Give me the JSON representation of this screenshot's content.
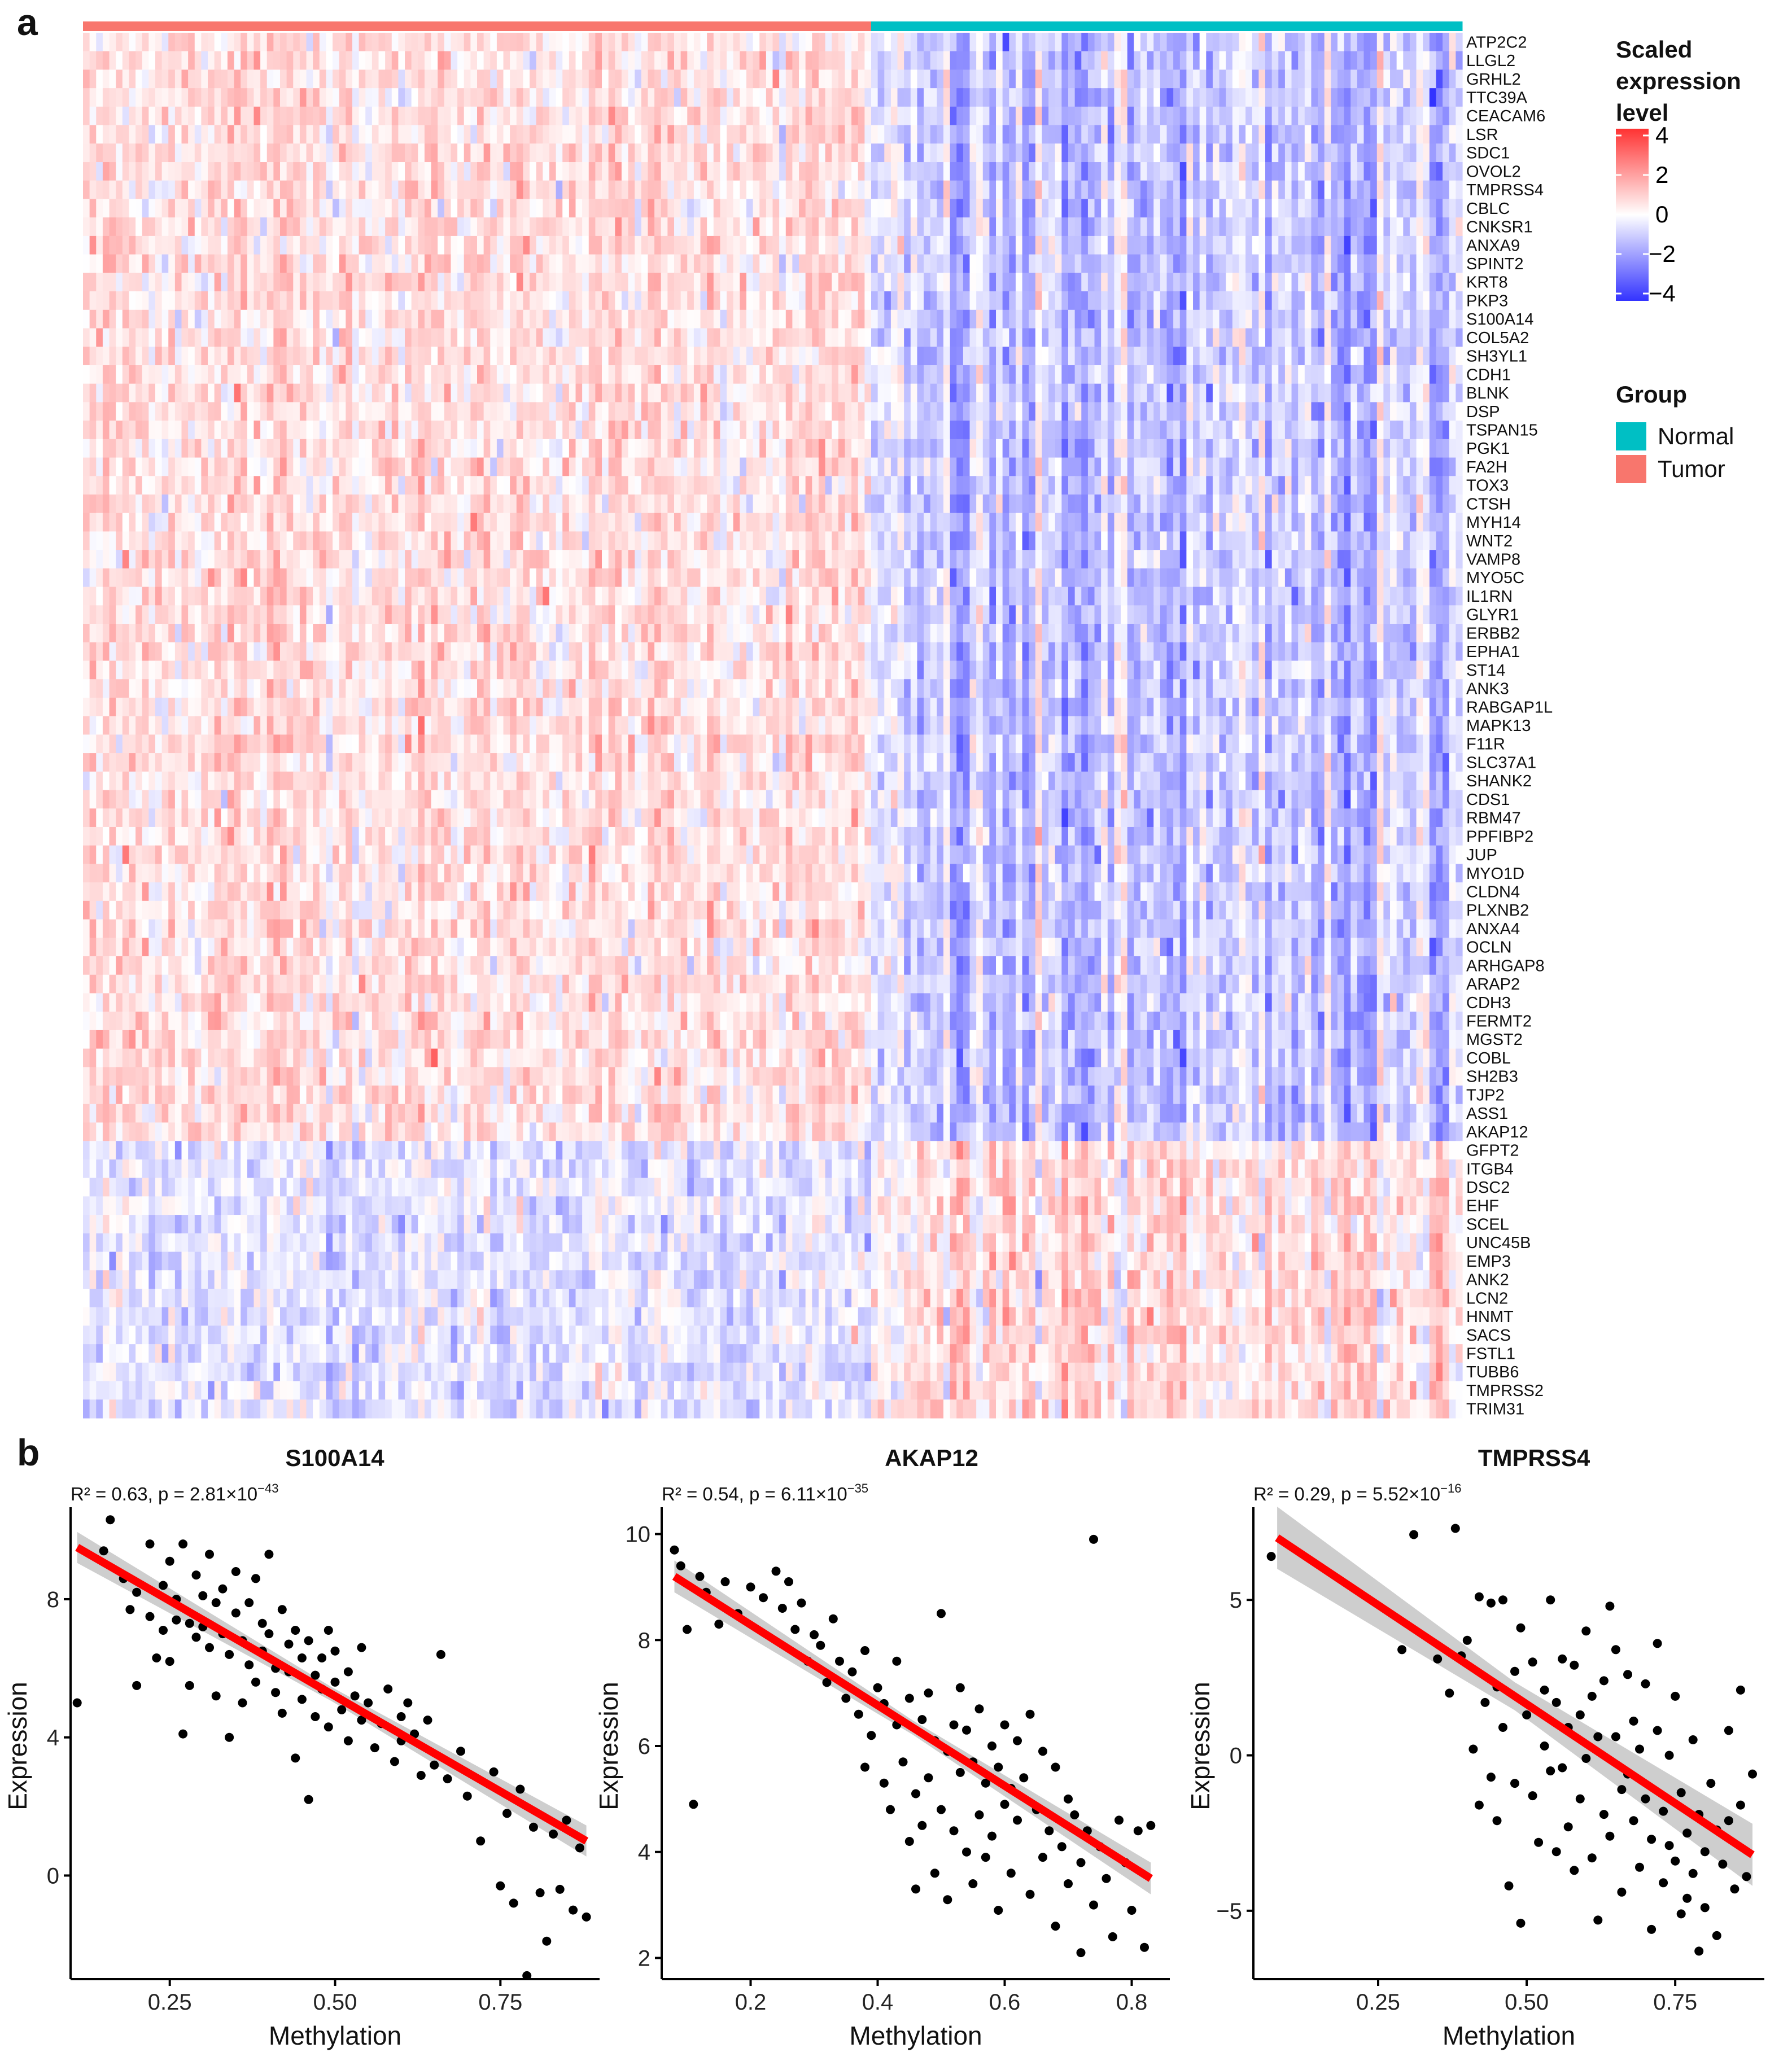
{
  "panel_a_label": "a",
  "panel_b_label": "b",
  "colors": {
    "tumor": "#F8766D",
    "normal": "#00BFC4",
    "low": "#3333FF",
    "mid": "#FFFFFF",
    "high": "#FF3333",
    "fit_line": "#FF0000",
    "ribbon": "#BEBEBE"
  },
  "legend": {
    "scale_title_lines": [
      "Scaled",
      "expression",
      "level"
    ],
    "scale_ticks": [
      "4",
      "2",
      "0",
      "−2",
      "−4"
    ],
    "group_title": "Group",
    "groups": [
      {
        "label": "Normal",
        "color": "#00BFC4"
      },
      {
        "label": "Tumor",
        "color": "#F8766D"
      }
    ]
  },
  "chart_data": [
    {
      "type": "heatmap",
      "title": "",
      "column_groups": [
        {
          "label": "Tumor",
          "count": 120
        },
        {
          "label": "Normal",
          "count": 90
        }
      ],
      "rows": [
        "ATP2C2",
        "LLGL2",
        "GRHL2",
        "TTC39A",
        "CEACAM6",
        "LSR",
        "SDC1",
        "OVOL2",
        "TMPRSS4",
        "CBLC",
        "CNKSR1",
        "ANXA9",
        "SPINT2",
        "KRT8",
        "PKP3",
        "S100A14",
        "COL5A2",
        "SH3YL1",
        "CDH1",
        "BLNK",
        "DSP",
        "TSPAN15",
        "PGK1",
        "FA2H",
        "TOX3",
        "CTSH",
        "MYH14",
        "WNT2",
        "VAMP8",
        "MYO5C",
        "IL1RN",
        "GLYR1",
        "ERBB2",
        "EPHA1",
        "ST14",
        "ANK3",
        "RABGAP1L",
        "MAPK13",
        "F11R",
        "SLC37A1",
        "SHANK2",
        "CDS1",
        "RBM47",
        "PPFIBP2",
        "JUP",
        "MYO1D",
        "CLDN4",
        "PLXNB2",
        "ANXA4",
        "OCLN",
        "ARHGAP8",
        "ARAP2",
        "CDH3",
        "FERMT2",
        "MGST2",
        "COBL",
        "SH2B3",
        "TJP2",
        "ASS1",
        "AKAP12",
        "GFPT2",
        "ITGB4",
        "DSC2",
        "EHF",
        "SCEL",
        "UNC45B",
        "EMP3",
        "ANK2",
        "LCN2",
        "HNMT",
        "SACS",
        "FSTL1",
        "TUBB6",
        "TMPRSS2",
        "TRIM31"
      ],
      "upper_block_rows": 60,
      "tumor_mean_upper": 0.6,
      "normal_mean_upper": -1.2,
      "tumor_mean_lower": -0.5,
      "normal_mean_lower": 0.7,
      "scale_range": [
        -4,
        4
      ]
    },
    {
      "type": "scatter",
      "title": "S100A14",
      "stat_prefix": "R² = 0.63, p = 2.81×10",
      "stat_exp": "−43",
      "xlabel": "Methylation",
      "ylabel": "Expression",
      "xlim": [
        0.1,
        0.9
      ],
      "ylim": [
        -3,
        10.5
      ],
      "xticks": [
        0.25,
        0.5,
        0.75
      ],
      "xtick_labels": [
        "0.25",
        "0.50",
        "0.75"
      ],
      "yticks": [
        0,
        4,
        8
      ],
      "ytick_labels": [
        "0",
        "4",
        "8"
      ],
      "fit": {
        "x0": 0.11,
        "y0": 9.5,
        "x1": 0.88,
        "y1": 1.0,
        "band": 0.45
      },
      "points": [
        [
          0.11,
          5.0
        ],
        [
          0.15,
          9.4
        ],
        [
          0.16,
          10.3
        ],
        [
          0.18,
          8.6
        ],
        [
          0.19,
          7.7
        ],
        [
          0.2,
          8.2
        ],
        [
          0.2,
          5.5
        ],
        [
          0.22,
          9.6
        ],
        [
          0.22,
          7.5
        ],
        [
          0.23,
          6.3
        ],
        [
          0.24,
          8.4
        ],
        [
          0.24,
          7.1
        ],
        [
          0.25,
          9.1
        ],
        [
          0.25,
          6.2
        ],
        [
          0.26,
          7.4
        ],
        [
          0.26,
          8.0
        ],
        [
          0.27,
          9.6
        ],
        [
          0.27,
          4.1
        ],
        [
          0.28,
          7.3
        ],
        [
          0.28,
          5.5
        ],
        [
          0.29,
          8.7
        ],
        [
          0.29,
          6.9
        ],
        [
          0.3,
          8.1
        ],
        [
          0.3,
          7.2
        ],
        [
          0.31,
          9.3
        ],
        [
          0.31,
          6.6
        ],
        [
          0.32,
          7.9
        ],
        [
          0.32,
          5.2
        ],
        [
          0.33,
          8.3
        ],
        [
          0.33,
          7.0
        ],
        [
          0.34,
          4.0
        ],
        [
          0.34,
          6.4
        ],
        [
          0.35,
          8.8
        ],
        [
          0.35,
          7.6
        ],
        [
          0.36,
          6.8
        ],
        [
          0.36,
          5.0
        ],
        [
          0.37,
          7.9
        ],
        [
          0.37,
          6.1
        ],
        [
          0.38,
          8.6
        ],
        [
          0.38,
          5.6
        ],
        [
          0.39,
          7.3
        ],
        [
          0.39,
          6.5
        ],
        [
          0.4,
          9.3
        ],
        [
          0.4,
          7.0
        ],
        [
          0.41,
          6.0
        ],
        [
          0.41,
          5.3
        ],
        [
          0.42,
          7.7
        ],
        [
          0.42,
          4.7
        ],
        [
          0.43,
          6.7
        ],
        [
          0.43,
          5.9
        ],
        [
          0.44,
          7.1
        ],
        [
          0.44,
          3.4
        ],
        [
          0.45,
          6.3
        ],
        [
          0.45,
          5.1
        ],
        [
          0.46,
          6.8
        ],
        [
          0.46,
          2.2
        ],
        [
          0.47,
          5.8
        ],
        [
          0.47,
          4.6
        ],
        [
          0.48,
          6.3
        ],
        [
          0.48,
          5.4
        ],
        [
          0.49,
          7.1
        ],
        [
          0.49,
          4.3
        ],
        [
          0.5,
          5.6
        ],
        [
          0.5,
          6.5
        ],
        [
          0.51,
          4.8
        ],
        [
          0.52,
          5.9
        ],
        [
          0.52,
          3.9
        ],
        [
          0.53,
          5.2
        ],
        [
          0.54,
          6.6
        ],
        [
          0.54,
          4.5
        ],
        [
          0.55,
          5.0
        ],
        [
          0.56,
          3.7
        ],
        [
          0.57,
          4.4
        ],
        [
          0.58,
          5.4
        ],
        [
          0.59,
          3.3
        ],
        [
          0.6,
          4.6
        ],
        [
          0.6,
          3.9
        ],
        [
          0.61,
          5.0
        ],
        [
          0.62,
          4.1
        ],
        [
          0.63,
          2.9
        ],
        [
          0.64,
          4.5
        ],
        [
          0.65,
          3.2
        ],
        [
          0.66,
          6.4
        ],
        [
          0.67,
          2.8
        ],
        [
          0.69,
          3.6
        ],
        [
          0.7,
          2.3
        ],
        [
          0.72,
          1.0
        ],
        [
          0.74,
          3.0
        ],
        [
          0.75,
          -0.3
        ],
        [
          0.76,
          1.8
        ],
        [
          0.77,
          -0.8
        ],
        [
          0.78,
          2.5
        ],
        [
          0.79,
          -2.9
        ],
        [
          0.8,
          1.4
        ],
        [
          0.81,
          -0.5
        ],
        [
          0.82,
          -1.9
        ],
        [
          0.83,
          1.2
        ],
        [
          0.84,
          -0.4
        ],
        [
          0.85,
          1.6
        ],
        [
          0.86,
          -1.0
        ],
        [
          0.87,
          0.8
        ],
        [
          0.88,
          -1.2
        ]
      ]
    },
    {
      "type": "scatter",
      "title": "AKAP12",
      "stat_prefix": "R² = 0.54, p = 6.11×10",
      "stat_exp": "−35",
      "xlabel": "Methylation",
      "ylabel": "Expression",
      "xlim": [
        0.06,
        0.86
      ],
      "ylim": [
        1.6,
        10.4
      ],
      "xticks": [
        0.2,
        0.4,
        0.6,
        0.8
      ],
      "xtick_labels": [
        "0.2",
        "0.4",
        "0.6",
        "0.8"
      ],
      "yticks": [
        2,
        4,
        6,
        8,
        10
      ],
      "ytick_labels": [
        "2",
        "4",
        "6",
        "8",
        "10"
      ],
      "fit": {
        "x0": 0.08,
        "y0": 9.2,
        "x1": 0.83,
        "y1": 3.5,
        "band": 0.3
      },
      "points": [
        [
          0.08,
          9.7
        ],
        [
          0.09,
          9.4
        ],
        [
          0.1,
          8.2
        ],
        [
          0.11,
          4.9
        ],
        [
          0.12,
          9.2
        ],
        [
          0.13,
          8.9
        ],
        [
          0.15,
          8.3
        ],
        [
          0.16,
          9.1
        ],
        [
          0.18,
          8.5
        ],
        [
          0.2,
          9.0
        ],
        [
          0.22,
          8.8
        ],
        [
          0.24,
          9.3
        ],
        [
          0.25,
          8.6
        ],
        [
          0.26,
          9.1
        ],
        [
          0.27,
          8.2
        ],
        [
          0.28,
          8.7
        ],
        [
          0.29,
          7.6
        ],
        [
          0.3,
          8.1
        ],
        [
          0.31,
          7.9
        ],
        [
          0.32,
          7.2
        ],
        [
          0.33,
          8.4
        ],
        [
          0.34,
          7.6
        ],
        [
          0.35,
          6.9
        ],
        [
          0.36,
          7.4
        ],
        [
          0.37,
          6.6
        ],
        [
          0.38,
          7.8
        ],
        [
          0.38,
          5.6
        ],
        [
          0.39,
          6.2
        ],
        [
          0.4,
          7.1
        ],
        [
          0.41,
          5.3
        ],
        [
          0.41,
          6.8
        ],
        [
          0.42,
          4.8
        ],
        [
          0.43,
          6.4
        ],
        [
          0.43,
          7.6
        ],
        [
          0.44,
          5.7
        ],
        [
          0.45,
          4.2
        ],
        [
          0.45,
          6.9
        ],
        [
          0.46,
          5.1
        ],
        [
          0.46,
          3.3
        ],
        [
          0.47,
          6.5
        ],
        [
          0.47,
          4.5
        ],
        [
          0.48,
          7.0
        ],
        [
          0.48,
          5.4
        ],
        [
          0.49,
          3.6
        ],
        [
          0.49,
          6.1
        ],
        [
          0.5,
          4.8
        ],
        [
          0.5,
          8.5
        ],
        [
          0.51,
          5.9
        ],
        [
          0.51,
          3.1
        ],
        [
          0.52,
          6.4
        ],
        [
          0.52,
          4.4
        ],
        [
          0.53,
          5.5
        ],
        [
          0.53,
          7.1
        ],
        [
          0.54,
          4.0
        ],
        [
          0.54,
          6.3
        ],
        [
          0.55,
          3.4
        ],
        [
          0.55,
          5.7
        ],
        [
          0.56,
          6.7
        ],
        [
          0.56,
          4.7
        ],
        [
          0.57,
          5.3
        ],
        [
          0.57,
          3.9
        ],
        [
          0.58,
          6.0
        ],
        [
          0.58,
          4.3
        ],
        [
          0.59,
          5.6
        ],
        [
          0.59,
          2.9
        ],
        [
          0.6,
          6.4
        ],
        [
          0.6,
          4.9
        ],
        [
          0.61,
          5.2
        ],
        [
          0.61,
          3.6
        ],
        [
          0.62,
          6.1
        ],
        [
          0.62,
          4.6
        ],
        [
          0.63,
          5.4
        ],
        [
          0.64,
          3.2
        ],
        [
          0.64,
          6.6
        ],
        [
          0.65,
          4.8
        ],
        [
          0.66,
          5.9
        ],
        [
          0.66,
          3.9
        ],
        [
          0.67,
          4.4
        ],
        [
          0.68,
          5.6
        ],
        [
          0.68,
          2.6
        ],
        [
          0.69,
          4.1
        ],
        [
          0.7,
          5.0
        ],
        [
          0.7,
          3.4
        ],
        [
          0.71,
          4.7
        ],
        [
          0.72,
          2.1
        ],
        [
          0.72,
          3.8
        ],
        [
          0.73,
          4.4
        ],
        [
          0.74,
          9.9
        ],
        [
          0.74,
          3.0
        ],
        [
          0.75,
          4.1
        ],
        [
          0.76,
          3.5
        ],
        [
          0.77,
          2.4
        ],
        [
          0.78,
          4.6
        ],
        [
          0.79,
          3.8
        ],
        [
          0.8,
          2.9
        ],
        [
          0.81,
          4.4
        ],
        [
          0.82,
          2.2
        ],
        [
          0.83,
          4.5
        ]
      ]
    },
    {
      "type": "scatter",
      "title": "TMPRSS4",
      "stat_prefix": "R² = 0.29, p = 5.52×10",
      "stat_exp": "−16",
      "xlabel": "Methylation",
      "ylabel": "Expression",
      "xlim": [
        0.04,
        0.9
      ],
      "ylim": [
        -7.2,
        7.8
      ],
      "xticks": [
        0.25,
        0.5,
        0.75
      ],
      "xtick_labels": [
        "0.25",
        "0.50",
        "0.75"
      ],
      "yticks": [
        -5,
        0,
        5
      ],
      "ytick_labels": [
        "−5",
        "0",
        "5"
      ],
      "fit": {
        "x0": 0.08,
        "y0": 7.0,
        "x1": 0.88,
        "y1": -3.2,
        "band": 1.0
      },
      "points": [
        [
          0.07,
          6.4
        ],
        [
          0.29,
          3.4
        ],
        [
          0.31,
          7.1
        ],
        [
          0.35,
          3.1
        ],
        [
          0.37,
          2.0
        ],
        [
          0.38,
          7.3
        ],
        [
          0.39,
          3.2
        ],
        [
          0.4,
          3.7
        ],
        [
          0.41,
          0.2
        ],
        [
          0.42,
          5.1
        ],
        [
          0.42,
          -1.6
        ],
        [
          0.43,
          1.7
        ],
        [
          0.44,
          4.9
        ],
        [
          0.44,
          -0.7
        ],
        [
          0.45,
          2.2
        ],
        [
          0.45,
          -2.1
        ],
        [
          0.46,
          5.0
        ],
        [
          0.46,
          0.9
        ],
        [
          0.47,
          -4.2
        ],
        [
          0.48,
          2.7
        ],
        [
          0.48,
          -0.9
        ],
        [
          0.49,
          4.1
        ],
        [
          0.49,
          -5.4
        ],
        [
          0.5,
          1.3
        ],
        [
          0.51,
          3.0
        ],
        [
          0.51,
          -1.3
        ],
        [
          0.52,
          -2.8
        ],
        [
          0.53,
          0.3
        ],
        [
          0.53,
          2.1
        ],
        [
          0.54,
          5.0
        ],
        [
          0.54,
          -0.5
        ],
        [
          0.55,
          -3.1
        ],
        [
          0.55,
          1.7
        ],
        [
          0.56,
          3.1
        ],
        [
          0.56,
          -0.4
        ],
        [
          0.57,
          0.9
        ],
        [
          0.57,
          -2.3
        ],
        [
          0.58,
          2.9
        ],
        [
          0.58,
          -3.7
        ],
        [
          0.59,
          1.3
        ],
        [
          0.59,
          -1.4
        ],
        [
          0.6,
          4.0
        ],
        [
          0.6,
          -0.1
        ],
        [
          0.61,
          -3.3
        ],
        [
          0.61,
          1.9
        ],
        [
          0.62,
          -5.3
        ],
        [
          0.62,
          0.6
        ],
        [
          0.63,
          2.4
        ],
        [
          0.63,
          -1.9
        ],
        [
          0.64,
          4.8
        ],
        [
          0.64,
          -2.6
        ],
        [
          0.65,
          0.6
        ],
        [
          0.65,
          3.4
        ],
        [
          0.66,
          -1.1
        ],
        [
          0.66,
          -4.4
        ],
        [
          0.67,
          2.6
        ],
        [
          0.67,
          -0.6
        ],
        [
          0.68,
          -2.1
        ],
        [
          0.68,
          1.1
        ],
        [
          0.69,
          -3.6
        ],
        [
          0.69,
          0.2
        ],
        [
          0.7,
          2.3
        ],
        [
          0.7,
          -1.4
        ],
        [
          0.71,
          -5.6
        ],
        [
          0.71,
          -2.7
        ],
        [
          0.72,
          0.8
        ],
        [
          0.72,
          3.6
        ],
        [
          0.73,
          -1.8
        ],
        [
          0.73,
          -4.1
        ],
        [
          0.74,
          0.0
        ],
        [
          0.74,
          -2.9
        ],
        [
          0.75,
          1.9
        ],
        [
          0.75,
          -3.4
        ],
        [
          0.76,
          -5.1
        ],
        [
          0.76,
          -1.2
        ],
        [
          0.77,
          -2.5
        ],
        [
          0.77,
          -4.6
        ],
        [
          0.78,
          0.5
        ],
        [
          0.78,
          -3.8
        ],
        [
          0.79,
          -6.3
        ],
        [
          0.79,
          -1.9
        ],
        [
          0.8,
          -3.1
        ],
        [
          0.8,
          -4.9
        ],
        [
          0.81,
          -0.9
        ],
        [
          0.82,
          -2.4
        ],
        [
          0.82,
          -5.8
        ],
        [
          0.83,
          -3.5
        ],
        [
          0.84,
          0.8
        ],
        [
          0.84,
          -2.1
        ],
        [
          0.85,
          -4.3
        ],
        [
          0.86,
          2.1
        ],
        [
          0.86,
          -1.6
        ],
        [
          0.87,
          -3.9
        ],
        [
          0.88,
          -0.6
        ]
      ]
    }
  ]
}
